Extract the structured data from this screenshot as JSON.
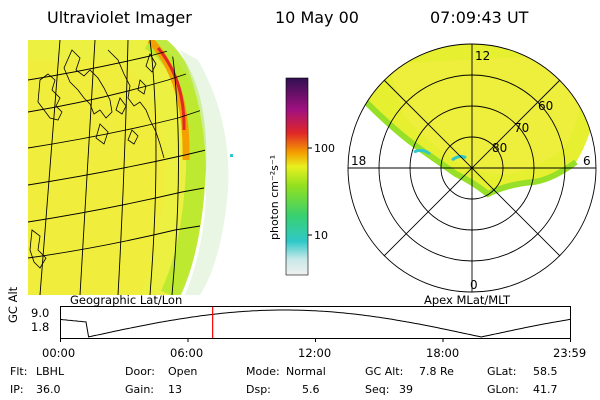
{
  "header": {
    "instrument": "Ultraviolet Imager",
    "date": "10 May 00",
    "time": "07:09:43 UT"
  },
  "panels": {
    "left_label": "Geographic Lat/Lon",
    "right_label": "Apex MLat/MLT"
  },
  "colorbar": {
    "unit_label": "photon cm⁻²s⁻¹",
    "scale": "log",
    "ticks": [
      "100",
      "10"
    ]
  },
  "polar_plot": {
    "mlt_labels": {
      "top": "12",
      "left": "18",
      "right": "6",
      "bottom": "0"
    },
    "lat_labels": [
      "60",
      "70",
      "80"
    ]
  },
  "altitude_track": {
    "ylabel": "GC Alt",
    "ytick_labels": [
      "9.0",
      "1.8"
    ],
    "xtick_labels": [
      "00:00",
      "06:00",
      "12:00",
      "18:00",
      "23:59"
    ],
    "current_time_hours": 7.16,
    "marker_color": "#ff0000"
  },
  "info": {
    "flt_label": "Flt:",
    "flt_value": "LBHL",
    "ip_label": "IP:",
    "ip_value": "36.0",
    "door_label": "Door:",
    "door_value": "Open",
    "gain_label": "Gain:",
    "gain_value": "13",
    "mode_label": "Mode:",
    "mode_value": "Normal",
    "dsp_label": "Dsp:",
    "dsp_value": "5.6",
    "gcalt_label": "GC Alt:",
    "gcalt_value": "7.8 Re",
    "seq_label": "Seq:",
    "seq_value": "39",
    "glat_label": "GLat:",
    "glat_value": "58.5",
    "glon_label": "GLon:",
    "glon_value": "41.7"
  },
  "colors": {
    "palette": [
      "#e8e8e8",
      "#a0d8d8",
      "#30c8c8",
      "#38d070",
      "#90e020",
      "#e8f020",
      "#f4e030",
      "#f4a000",
      "#e02828",
      "#a01080",
      "#301050"
    ],
    "auroral_edge": "#e02828"
  }
}
